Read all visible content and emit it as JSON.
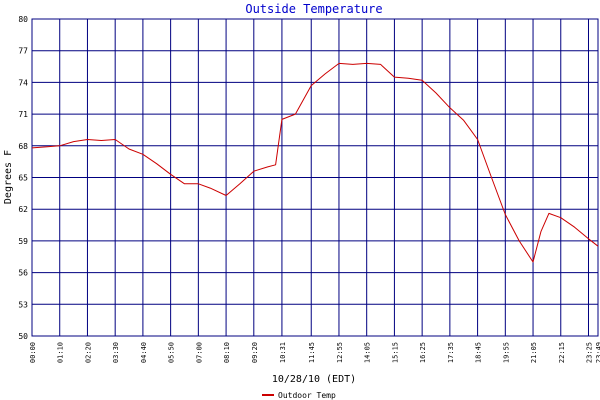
{
  "chart_data": {
    "type": "line",
    "title": "Outside Temperature",
    "xlabel": "10/28/10 (EDT)",
    "ylabel": "Degrees F",
    "ylim": [
      50,
      80
    ],
    "yticks": [
      "80",
      "77",
      "74",
      "71",
      "68",
      "65",
      "62",
      "59",
      "56",
      "53",
      "50"
    ],
    "xlim": [
      "00:00",
      "23:49"
    ],
    "xticks": [
      "00:00",
      "01:10",
      "02:20",
      "03:30",
      "04:40",
      "05:50",
      "07:00",
      "08:10",
      "09:20",
      "10:31",
      "11:45",
      "12:55",
      "14:05",
      "15:15",
      "16:25",
      "17:35",
      "18:45",
      "19:55",
      "21:05",
      "22:15",
      "23:25",
      "23:49"
    ],
    "grid": true,
    "legend_position": "bottom-center",
    "colors": {
      "line": "#cc0000",
      "grid": "#000080",
      "title": "#0000cc",
      "text": "#000000"
    },
    "series": [
      {
        "name": "Outdoor Temp",
        "x": [
          "00:00",
          "00:35",
          "01:10",
          "01:45",
          "02:20",
          "02:55",
          "03:30",
          "04:05",
          "04:40",
          "05:15",
          "05:50",
          "06:25",
          "07:00",
          "07:30",
          "08:10",
          "08:45",
          "09:20",
          "09:55",
          "10:15",
          "10:31",
          "11:05",
          "11:45",
          "12:20",
          "12:55",
          "13:30",
          "14:05",
          "14:40",
          "15:15",
          "15:50",
          "16:25",
          "17:00",
          "17:35",
          "18:10",
          "18:45",
          "19:20",
          "19:55",
          "20:30",
          "21:05",
          "21:25",
          "21:45",
          "22:15",
          "22:50",
          "23:25",
          "23:49"
        ],
        "y": [
          67.8,
          67.9,
          68.0,
          68.4,
          68.6,
          68.5,
          68.6,
          67.7,
          67.2,
          66.3,
          65.3,
          64.4,
          64.4,
          64.0,
          63.3,
          64.4,
          65.6,
          66.0,
          66.2,
          70.5,
          71.0,
          73.7,
          74.8,
          75.8,
          75.7,
          75.8,
          75.7,
          74.5,
          74.4,
          74.2,
          73.0,
          71.6,
          70.4,
          68.6,
          65.0,
          61.5,
          59.0,
          57.0,
          59.9,
          61.6,
          61.2,
          60.3,
          59.2,
          58.5
        ]
      }
    ]
  }
}
